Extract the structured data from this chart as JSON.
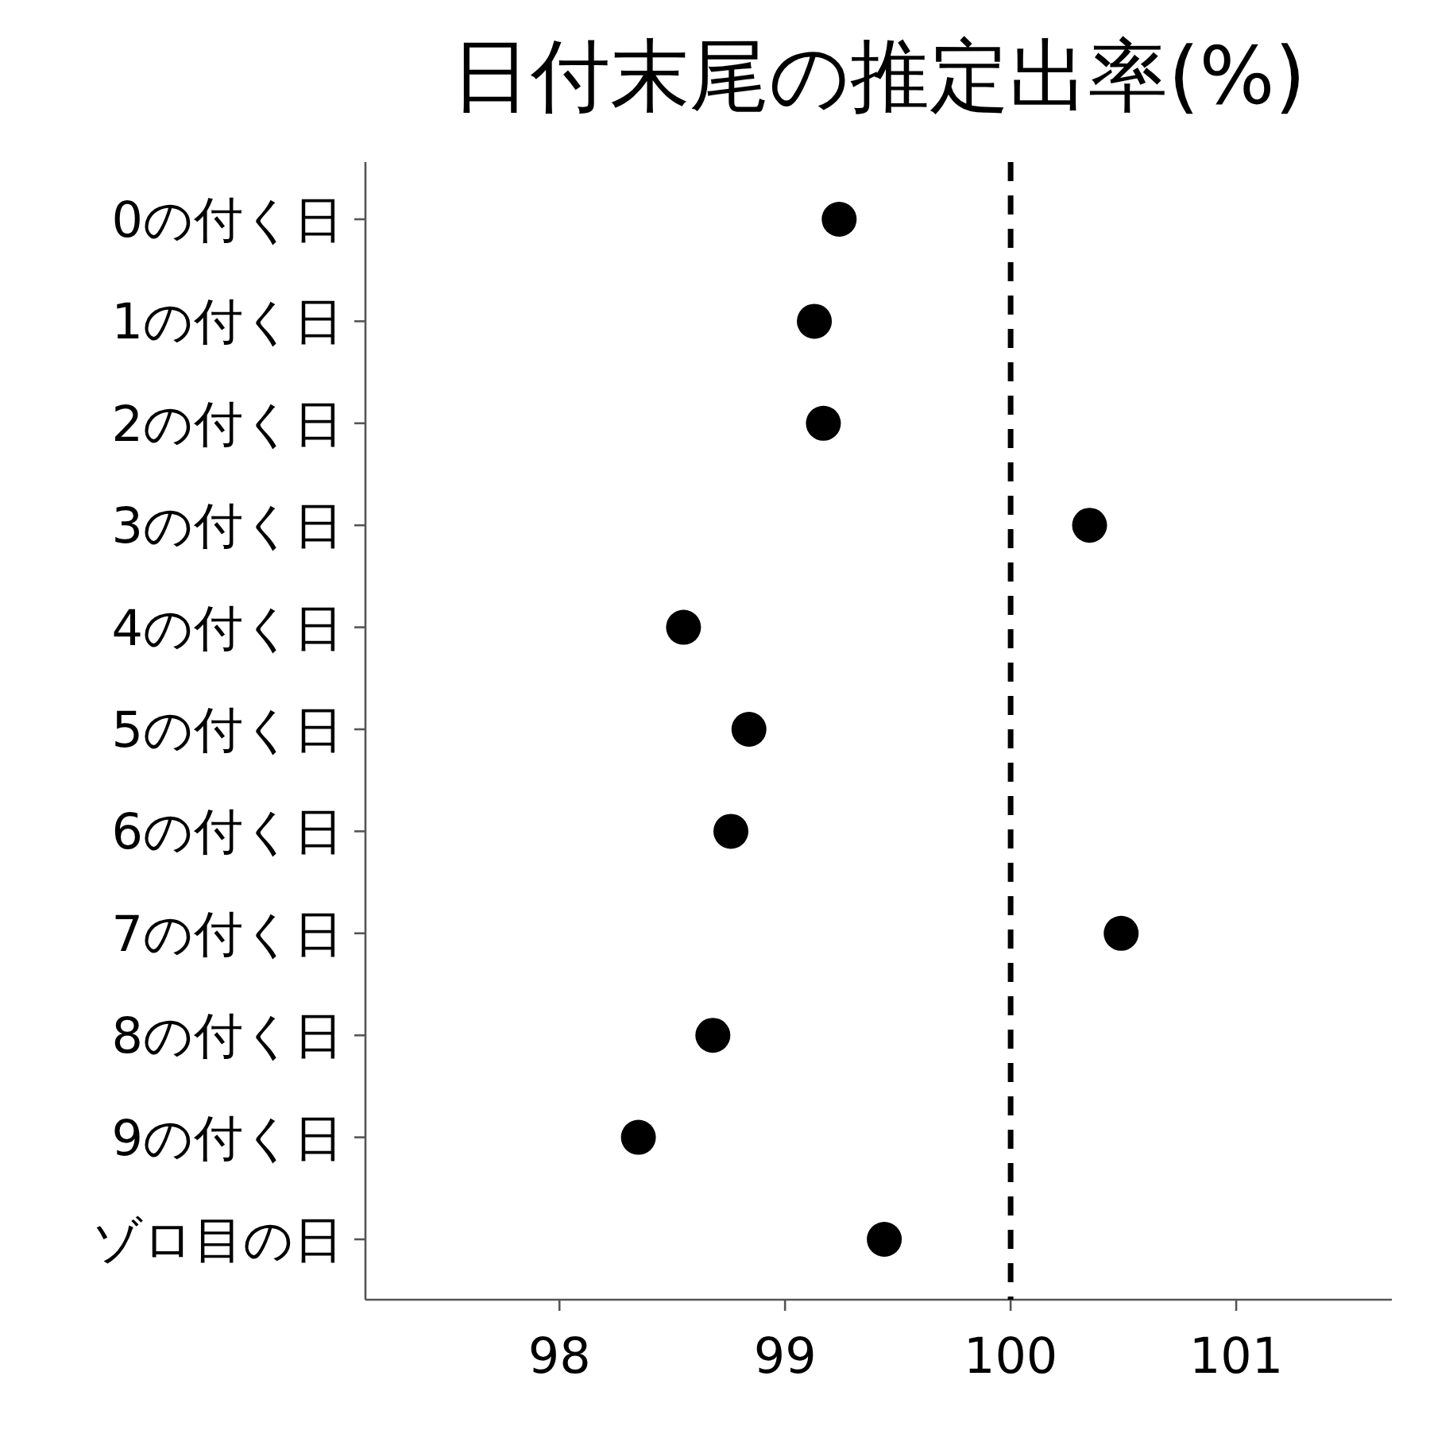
{
  "chart_data": {
    "type": "scatter",
    "title": "日付末尾の推定出率(%)",
    "orientation": "horizontal",
    "categories": [
      "0の付く日",
      "1の付く日",
      "2の付く日",
      "3の付く日",
      "4の付く日",
      "5の付く日",
      "6の付く日",
      "7の付く日",
      "8の付く日",
      "9の付く日",
      "ゾロ目の日"
    ],
    "values": [
      99.24,
      99.13,
      99.17,
      100.35,
      98.55,
      98.84,
      98.76,
      100.49,
      98.68,
      98.35,
      99.44
    ],
    "color": "#000000",
    "marker": "circle",
    "xlim": [
      97.14,
      101.69
    ],
    "xticks": [
      98,
      99,
      100,
      101
    ],
    "grid": false,
    "ref_lines": [
      {
        "axis": "x",
        "value": 100,
        "color": "#000000",
        "line_style": "dashed"
      }
    ]
  }
}
